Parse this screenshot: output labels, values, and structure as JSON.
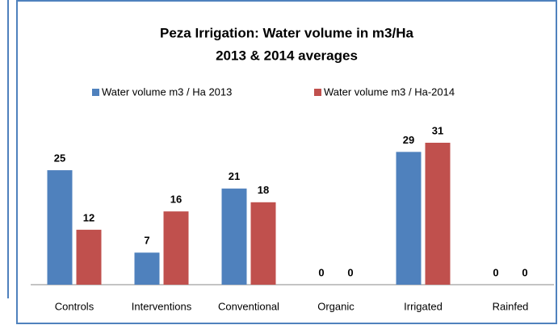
{
  "chart_data": {
    "type": "bar",
    "title": "Peza Irrigation:  Water volume in m3/Ha",
    "subtitle": "2013 & 2014 averages",
    "categories": [
      "Controls",
      "Interventions",
      "Conventional",
      "Organic",
      "Irrigated",
      "Rainfed"
    ],
    "series": [
      {
        "name": "Water volume m3 / Ha 2013",
        "color": "#4f81bd",
        "values": [
          25,
          7,
          21,
          0,
          29,
          0
        ]
      },
      {
        "name": "Water volume m3 / Ha-2014",
        "color": "#c0504d",
        "values": [
          12,
          16,
          18,
          0,
          31,
          0
        ]
      }
    ],
    "legend": "top"
  }
}
